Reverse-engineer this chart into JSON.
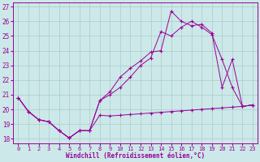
{
  "bg_color": "#cce8e8",
  "line_color": "#990099",
  "grid_color": "#aacccc",
  "xlabel": "Windchill (Refroidissement éolien,°C)",
  "xmin": -0.5,
  "xmax": 23.5,
  "ymin": 17.7,
  "ymax": 27.3,
  "yticks": [
    18,
    19,
    20,
    21,
    22,
    23,
    24,
    25,
    26,
    27
  ],
  "xticks": [
    0,
    1,
    2,
    3,
    4,
    5,
    6,
    7,
    8,
    9,
    10,
    11,
    12,
    13,
    14,
    15,
    16,
    17,
    18,
    19,
    20,
    21,
    22,
    23
  ],
  "line1": {
    "x": [
      0,
      1,
      2,
      3,
      4,
      5,
      6,
      7,
      8,
      9,
      10,
      11,
      12,
      13,
      14,
      15,
      16,
      17,
      18,
      19,
      20,
      21,
      22,
      23
    ],
    "y": [
      20.8,
      19.85,
      19.3,
      19.15,
      18.55,
      18.05,
      18.55,
      18.55,
      19.6,
      19.55,
      19.6,
      19.65,
      19.7,
      19.75,
      19.8,
      19.85,
      19.9,
      19.95,
      20.0,
      20.05,
      20.1,
      20.15,
      20.2,
      20.3
    ]
  },
  "line2": {
    "x": [
      0,
      1,
      2,
      3,
      4,
      5,
      6,
      7,
      8,
      9,
      10,
      11,
      12,
      13,
      14,
      15,
      16,
      17,
      18,
      19,
      20,
      21,
      22,
      23
    ],
    "y": [
      20.8,
      19.85,
      19.3,
      19.15,
      18.55,
      18.05,
      18.55,
      18.55,
      20.6,
      21.2,
      22.2,
      22.8,
      23.3,
      23.9,
      24.0,
      26.7,
      26.0,
      25.7,
      25.8,
      25.2,
      21.5,
      23.4,
      20.2,
      20.3
    ]
  },
  "line3": {
    "x": [
      0,
      1,
      2,
      3,
      4,
      5,
      6,
      7,
      8,
      9,
      10,
      11,
      12,
      13,
      14,
      15,
      16,
      17,
      18,
      19,
      20,
      21,
      22,
      23
    ],
    "y": [
      20.8,
      19.85,
      19.3,
      19.15,
      18.55,
      18.05,
      18.55,
      18.55,
      20.6,
      21.0,
      21.5,
      22.2,
      23.0,
      23.5,
      25.3,
      25.0,
      25.6,
      26.0,
      25.6,
      25.1,
      23.4,
      21.5,
      20.2,
      20.3
    ]
  }
}
